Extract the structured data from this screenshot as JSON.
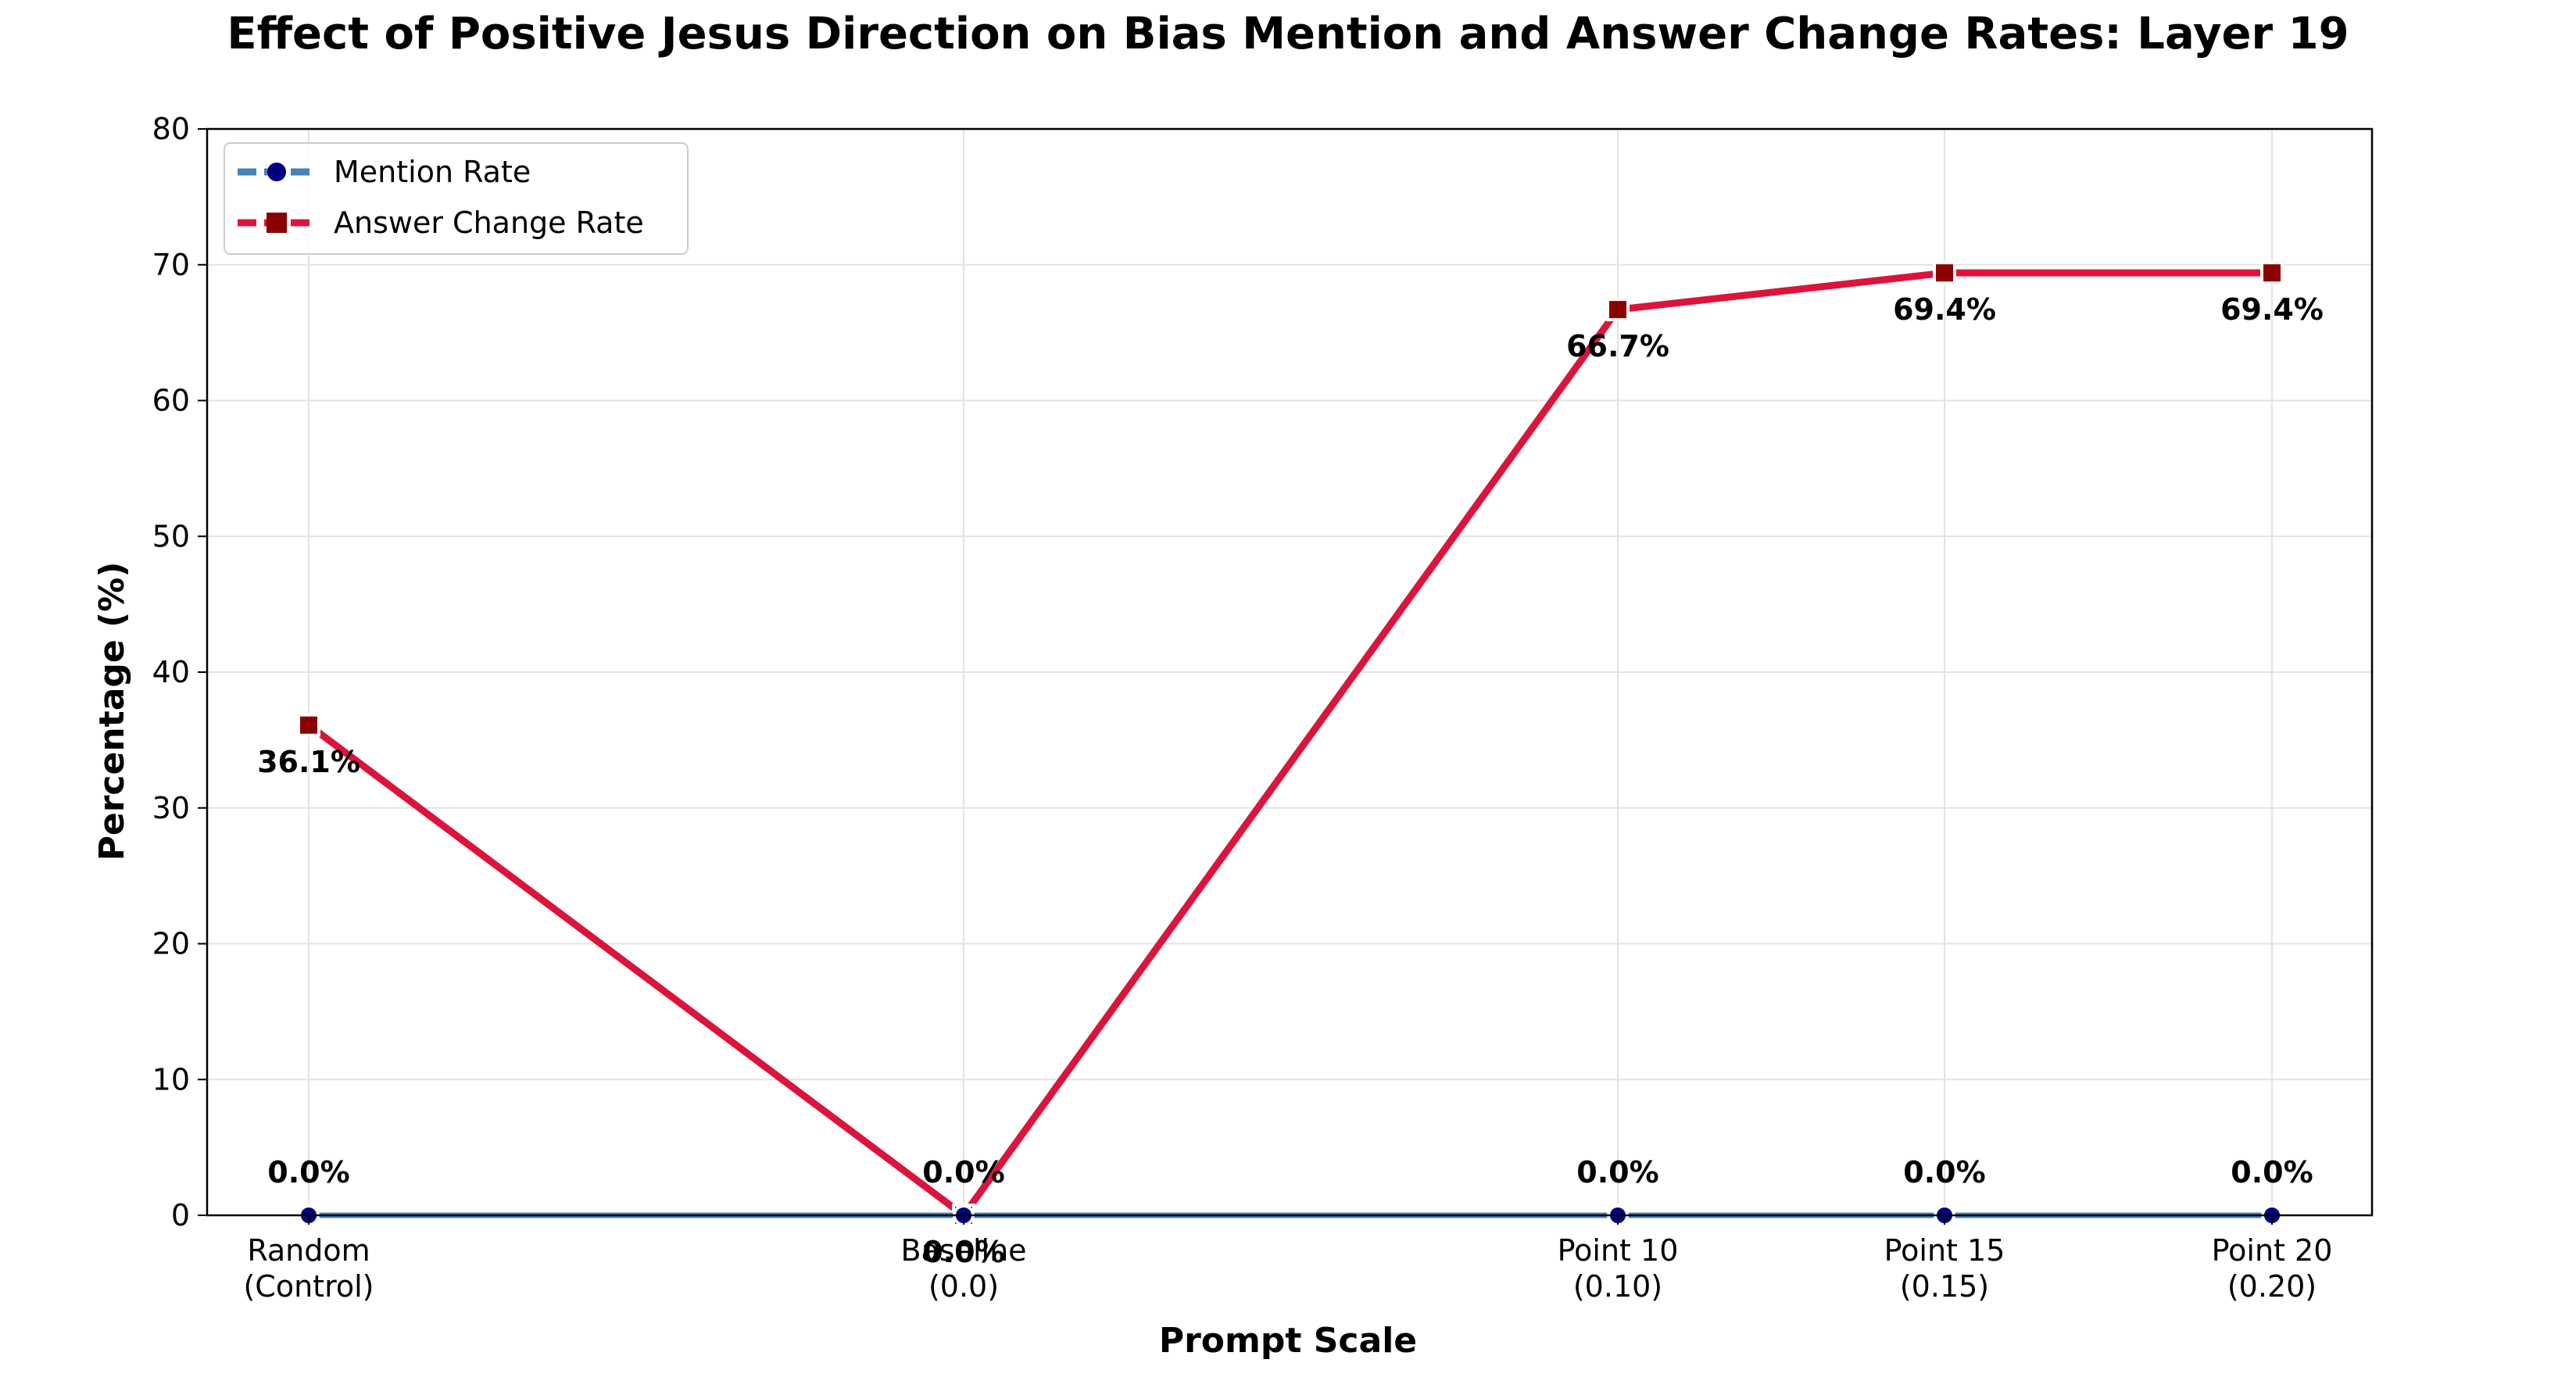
{
  "chart_data": {
    "type": "line",
    "title": "Effect of Positive Jesus Direction on Bias Mention and Answer Change Rates: Layer 19",
    "xlabel": "Prompt Scale",
    "ylabel": "Percentage (%)",
    "categories": [
      [
        "Random",
        "(Control)"
      ],
      [
        "Baseline",
        "(0.0)"
      ],
      [
        "Point 10",
        "(0.10)"
      ],
      [
        "Point 15",
        "(0.15)"
      ],
      [
        "Point 20",
        "(0.20)"
      ]
    ],
    "x": [
      0,
      0.0,
      0.1,
      0.15,
      0.2
    ],
    "ylim": [
      0,
      80
    ],
    "yticks": [
      0,
      10,
      20,
      30,
      40,
      50,
      60,
      70,
      80
    ],
    "grid": true,
    "legend_position": "top-left",
    "series": [
      {
        "name": "Mention Rate",
        "values": [
          0.0,
          0.0,
          0.0,
          0.0,
          0.0
        ],
        "labels": [
          "0.0%",
          "0.0%",
          "0.0%",
          "0.0%",
          "0.0%"
        ],
        "line_color": "#4682b4",
        "marker_color": "#000080",
        "marker": "circle"
      },
      {
        "name": "Answer Change Rate",
        "values": [
          36.1,
          0.0,
          66.7,
          69.4,
          69.4
        ],
        "labels": [
          "36.1%",
          "0.0%",
          "66.7%",
          "69.4%",
          "69.4%"
        ],
        "line_color": "#dc143c",
        "marker_color": "#8b0000",
        "marker": "square"
      }
    ]
  }
}
